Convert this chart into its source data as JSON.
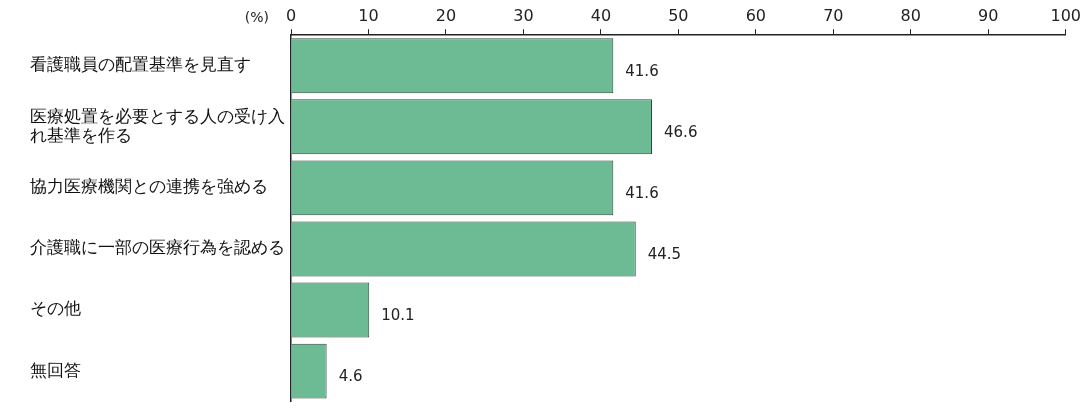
{
  "chart_data": {
    "type": "bar",
    "orientation": "horizontal",
    "xlabel": "(%)",
    "categories": [
      "看護職員の配置基準を見直す",
      "医療処置を必要とする人の受け入れ基準を作る",
      "協力医療機関との連携を強める",
      "介護職に一部の医療行為を認める",
      "その他",
      "無回答"
    ],
    "values": [
      41.6,
      46.6,
      41.6,
      44.5,
      10.1,
      4.6
    ],
    "color": "#6dbb94",
    "xlim": [
      0,
      100
    ],
    "xticks": [
      0,
      10,
      20,
      30,
      40,
      50,
      60,
      70,
      80,
      90,
      100
    ],
    "grid": false,
    "data_labels": true
  }
}
